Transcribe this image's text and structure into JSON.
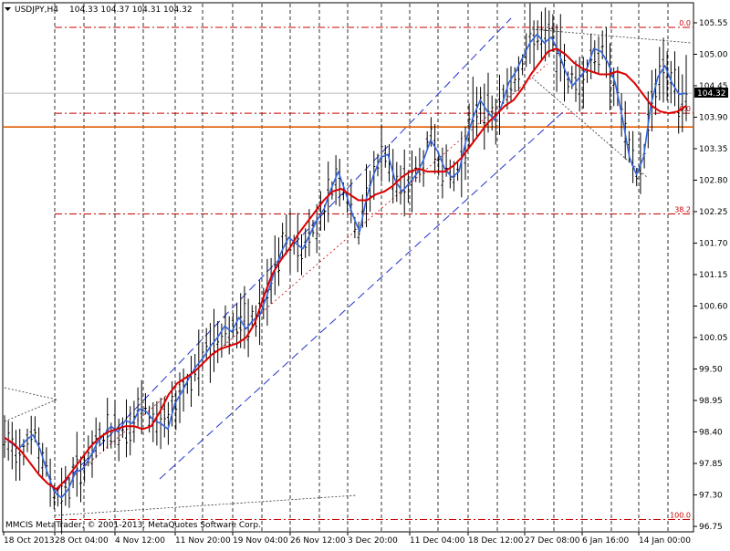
{
  "header": {
    "symbol_timeframe": "USDJPY,H4",
    "ohlc": "104.33 104.37 104.31 104.32"
  },
  "copyright": "MMCIS MetaTrader, © 2001-2013, MetaQuotes Software Corp.",
  "current_price": "104.32",
  "colors": {
    "background": "#ffffff",
    "bars": "#000000",
    "fast_ma": "#3366dd",
    "slow_ma": "#dd0000",
    "horizontal_line": "#e05a00",
    "fib": "#cc0000",
    "channel": "#2233cc"
  },
  "fib_levels": [
    {
      "label": "0.0",
      "price": 105.47
    },
    {
      "label": "0.0",
      "price": 103.97
    },
    {
      "label": "38.2",
      "price": 102.21
    },
    {
      "label": "100.0",
      "price": 96.87
    }
  ],
  "chart_data": {
    "type": "line",
    "y_ticks": [
      "105.55",
      "105.00",
      "104.45",
      "103.90",
      "103.35",
      "102.80",
      "102.25",
      "101.70",
      "101.15",
      "100.60",
      "100.05",
      "99.50",
      "98.95",
      "98.40",
      "97.85",
      "97.30",
      "96.75"
    ],
    "x_ticks": [
      "18 Oct 2013",
      "28 Oct 04:00",
      "4 Nov 12:00",
      "11 Nov 20:00",
      "19 Nov 04:00",
      "26 Nov 12:00",
      "3 Dec 20:00",
      "11 Dec 04:00",
      "18 Dec 12:00",
      "27 Dec 08:00",
      "6 Jan 16:00",
      "14 Jan 00:00"
    ],
    "ylim": [
      96.75,
      105.55
    ],
    "horizontal_line": 103.73,
    "current_price": 104.32,
    "series": [
      {
        "values": [
          98.3,
          98.2,
          98.1,
          98.25,
          98.35,
          98.1,
          97.7,
          97.35,
          97.25,
          97.4,
          97.7,
          97.75,
          97.95,
          98.2,
          98.35,
          98.5,
          98.4,
          98.6,
          98.55,
          98.8,
          98.75,
          98.6,
          98.55,
          98.45,
          98.9,
          99.1,
          99.35,
          99.55,
          99.7,
          99.9,
          100.05,
          100.25,
          100.15,
          100.4,
          100.2,
          100.35,
          100.45,
          100.8,
          101.2,
          101.55,
          101.8,
          101.7,
          101.6,
          101.85,
          102.1,
          102.3,
          102.65,
          102.95,
          102.6,
          102.2,
          101.9,
          102.5,
          102.9,
          103.2,
          103.25,
          102.8,
          102.6,
          102.75,
          102.9,
          103.15,
          103.5,
          103.3,
          103.0,
          102.85,
          102.95,
          103.5,
          103.9,
          104.2,
          104.0,
          103.85,
          104.1,
          104.5,
          104.7,
          104.95,
          105.2,
          105.35,
          105.2,
          105.3,
          105.05,
          104.7,
          104.45,
          104.6,
          104.75,
          105.1,
          105.05,
          104.85,
          104.5,
          103.9,
          103.2,
          102.9,
          103.2,
          104.1,
          104.6,
          104.8,
          104.5,
          104.3,
          104.32
        ]
      },
      {
        "values": [
          98.3,
          98.2,
          98.05,
          97.85,
          97.65,
          97.5,
          97.4,
          97.55,
          97.75,
          97.95,
          98.15,
          98.3,
          98.4,
          98.45,
          98.5,
          98.5,
          98.45,
          98.5,
          98.75,
          99.05,
          99.25,
          99.35,
          99.45,
          99.6,
          99.75,
          99.85,
          99.9,
          99.95,
          100.05,
          100.3,
          100.75,
          101.15,
          101.4,
          101.6,
          101.85,
          102.05,
          102.25,
          102.45,
          102.6,
          102.65,
          102.55,
          102.45,
          102.45,
          102.55,
          102.6,
          102.7,
          102.85,
          102.95,
          103.0,
          102.95,
          102.95,
          102.95,
          103.05,
          103.2,
          103.4,
          103.6,
          103.8,
          103.95,
          104.1,
          104.2,
          104.4,
          104.65,
          104.85,
          105.05,
          105.1,
          105.0,
          104.85,
          104.75,
          104.7,
          104.65,
          104.65,
          104.7,
          104.65,
          104.5,
          104.3,
          104.1,
          104.0,
          103.97,
          104.0,
          104.1
        ]
      }
    ]
  }
}
